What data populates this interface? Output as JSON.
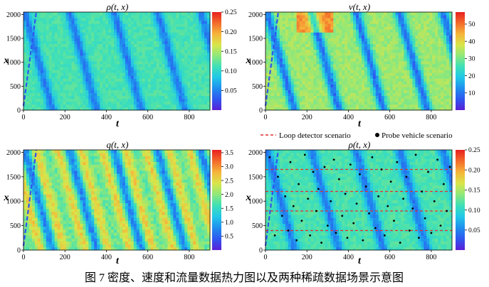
{
  "figure_caption": "图 7 密度、速度和流量数据热力图以及两种稀疏数据场景示意图",
  "legend": {
    "loop_detector": "Loop detector scenario",
    "probe_vehicle": "Probe vehicle scenario",
    "loop_color": "#e03030",
    "probe_color": "#000000"
  },
  "colormap": [
    "#5b1fd6",
    "#2f56f0",
    "#1f8fee",
    "#22c7e8",
    "#3ee0b8",
    "#8fe87a",
    "#d9e54a",
    "#f6b43a",
    "#f36a2a",
    "#e8201f"
  ],
  "chart_data": [
    {
      "type": "heatmap",
      "name": "density",
      "title": "ρ(t, x)",
      "xlabel": "t",
      "ylabel": "x",
      "xlim": [
        0,
        900
      ],
      "ylim": [
        0,
        2050
      ],
      "xticks": [
        "0",
        "200",
        "400",
        "600",
        "800"
      ],
      "xtick_values": [
        0,
        200,
        400,
        600,
        800
      ],
      "yticks": [
        "0",
        "500",
        "1000",
        "1500",
        "2000"
      ],
      "ytick_values": [
        0,
        500,
        1000,
        1500,
        2000
      ],
      "colorbar_range": [
        0.0,
        0.25
      ],
      "colorbar_ticks": [
        "0.05",
        "0.10",
        "0.15",
        "0.20",
        "0.25"
      ],
      "colorbar_tick_values": [
        0.05,
        0.1,
        0.15,
        0.2,
        0.25
      ],
      "waves_t_at_x0": [
        140,
        355,
        570,
        780,
        990
      ],
      "wave_slope_t_per_x": -0.065
    },
    {
      "type": "heatmap",
      "name": "speed",
      "title": "v(t, x)",
      "xlabel": "t",
      "ylabel": "x",
      "xlim": [
        0,
        900
      ],
      "ylim": [
        0,
        2050
      ],
      "xticks": [
        "0",
        "200",
        "400",
        "600",
        "800"
      ],
      "xtick_values": [
        0,
        200,
        400,
        600,
        800
      ],
      "yticks": [
        "0",
        "500",
        "1000",
        "1500",
        "2000"
      ],
      "ytick_values": [
        0,
        500,
        1000,
        1500,
        2000
      ],
      "colorbar_range": [
        0,
        57
      ],
      "colorbar_ticks": [
        "10",
        "20",
        "30",
        "40",
        "50"
      ],
      "colorbar_tick_values": [
        10,
        20,
        30,
        40,
        50
      ],
      "waves_t_at_x0": [
        140,
        355,
        570,
        780,
        990
      ],
      "wave_slope_t_per_x": -0.065
    },
    {
      "type": "heatmap",
      "name": "flow",
      "title": "q(t, x)",
      "xlabel": "t",
      "ylabel": "x",
      "xlim": [
        0,
        900
      ],
      "ylim": [
        0,
        2050
      ],
      "xticks": [
        "0",
        "200",
        "400",
        "600",
        "800"
      ],
      "xtick_values": [
        0,
        200,
        400,
        600,
        800
      ],
      "yticks": [
        "0",
        "500",
        "1000",
        "1500",
        "2000"
      ],
      "ytick_values": [
        0,
        500,
        1000,
        1500,
        2000
      ],
      "colorbar_range": [
        0.0,
        3.6
      ],
      "colorbar_ticks": [
        "0.5",
        "1.0",
        "1.5",
        "2.0",
        "2.5",
        "3.0",
        "3.5"
      ],
      "colorbar_tick_values": [
        0.5,
        1.0,
        1.5,
        2.0,
        2.5,
        3.0,
        3.5
      ],
      "waves_t_at_x0": [
        140,
        355,
        570,
        780,
        990
      ],
      "wave_slope_t_per_x": -0.065
    },
    {
      "type": "heatmap",
      "name": "density-sparse",
      "title": "ρ(t, x)",
      "xlabel": "t",
      "ylabel": "x",
      "xlim": [
        0,
        900
      ],
      "ylim": [
        0,
        2050
      ],
      "xticks": [
        "0",
        "200",
        "400",
        "600",
        "800"
      ],
      "xtick_values": [
        0,
        200,
        400,
        600,
        800
      ],
      "yticks": [
        "0",
        "500",
        "1000",
        "1500",
        "2000"
      ],
      "ytick_values": [
        0,
        500,
        1000,
        1500,
        2000
      ],
      "colorbar_range": [
        0.0,
        0.25
      ],
      "colorbar_ticks": [
        "0.05",
        "0.10",
        "0.15",
        "0.20",
        "0.25"
      ],
      "colorbar_tick_values": [
        0.05,
        0.1,
        0.15,
        0.2,
        0.25
      ],
      "waves_t_at_x0": [
        140,
        355,
        570,
        780,
        990
      ],
      "wave_slope_t_per_x": -0.065,
      "loop_detector_x": [
        400,
        800,
        1200,
        1650
      ],
      "probe_points": [
        [
          20,
          1900
        ],
        [
          45,
          300
        ],
        [
          60,
          1500
        ],
        [
          80,
          700
        ],
        [
          95,
          1100
        ],
        [
          110,
          400
        ],
        [
          120,
          1800
        ],
        [
          135,
          900
        ],
        [
          150,
          200
        ],
        [
          160,
          1350
        ],
        [
          175,
          600
        ],
        [
          190,
          1950
        ],
        [
          205,
          1050
        ],
        [
          215,
          300
        ],
        [
          230,
          1600
        ],
        [
          245,
          800
        ],
        [
          255,
          1250
        ],
        [
          270,
          150
        ],
        [
          285,
          1700
        ],
        [
          300,
          500
        ],
        [
          315,
          1000
        ],
        [
          330,
          1850
        ],
        [
          340,
          350
        ],
        [
          355,
          1450
        ],
        [
          370,
          700
        ],
        [
          385,
          1150
        ],
        [
          395,
          250
        ],
        [
          410,
          1750
        ],
        [
          425,
          550
        ],
        [
          440,
          950
        ],
        [
          455,
          1550
        ],
        [
          470,
          200
        ],
        [
          485,
          1300
        ],
        [
          500,
          750
        ],
        [
          515,
          1900
        ],
        [
          530,
          450
        ],
        [
          545,
          1100
        ],
        [
          560,
          1650
        ],
        [
          575,
          300
        ],
        [
          590,
          900
        ],
        [
          605,
          1400
        ],
        [
          620,
          600
        ],
        [
          635,
          1800
        ],
        [
          650,
          150
        ],
        [
          665,
          1050
        ],
        [
          680,
          1500
        ],
        [
          695,
          400
        ],
        [
          710,
          850
        ],
        [
          725,
          1950
        ],
        [
          740,
          250
        ],
        [
          755,
          1200
        ],
        [
          770,
          650
        ],
        [
          785,
          1600
        ],
        [
          800,
          350
        ],
        [
          815,
          1000
        ],
        [
          830,
          1850
        ],
        [
          845,
          500
        ],
        [
          860,
          1350
        ],
        [
          875,
          800
        ],
        [
          890,
          1700
        ]
      ]
    }
  ]
}
